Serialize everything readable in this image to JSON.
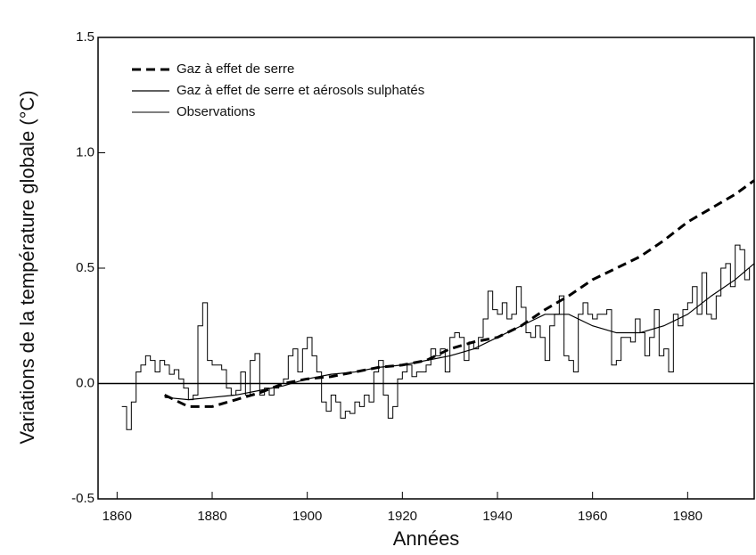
{
  "chart_data": {
    "type": "line",
    "xlabel": "Années",
    "ylabel": "Variations de la température globale (°C)",
    "xlim": [
      1856,
      1994
    ],
    "ylim": [
      -0.5,
      1.5
    ],
    "xticks": [
      1860,
      1880,
      1900,
      1920,
      1940,
      1960,
      1980
    ],
    "yticks": [
      -0.5,
      {
        "value": 0,
        "label": "0.0"
      },
      0.5,
      {
        "value": 1,
        "label": "1.0"
      },
      1.5
    ],
    "reference_line": 0,
    "legend": "upper left",
    "series": [
      {
        "name": "Gaz à effet de serre",
        "color": "#000000",
        "style": "dashed",
        "x": [
          1870,
          1875,
          1880,
          1885,
          1890,
          1895,
          1900,
          1905,
          1910,
          1915,
          1920,
          1925,
          1930,
          1935,
          1940,
          1945,
          1950,
          1955,
          1960,
          1965,
          1970,
          1975,
          1980,
          1985,
          1990,
          1994
        ],
        "values": [
          -0.05,
          -0.1,
          -0.1,
          -0.07,
          -0.04,
          0.0,
          0.02,
          0.03,
          0.05,
          0.07,
          0.08,
          0.1,
          0.15,
          0.18,
          0.2,
          0.25,
          0.32,
          0.38,
          0.45,
          0.5,
          0.55,
          0.62,
          0.7,
          0.76,
          0.82,
          0.88
        ]
      },
      {
        "name": "Gaz à effet de serre et aérosols sulphatés",
        "color": "#000000",
        "style": "solid",
        "x": [
          1870,
          1875,
          1880,
          1885,
          1890,
          1895,
          1900,
          1905,
          1910,
          1915,
          1920,
          1925,
          1930,
          1935,
          1940,
          1945,
          1950,
          1955,
          1960,
          1965,
          1970,
          1975,
          1980,
          1985,
          1990,
          1994
        ],
        "values": [
          -0.06,
          -0.07,
          -0.06,
          -0.05,
          -0.03,
          -0.01,
          0.02,
          0.04,
          0.05,
          0.07,
          0.08,
          0.1,
          0.12,
          0.15,
          0.2,
          0.25,
          0.3,
          0.3,
          0.25,
          0.22,
          0.22,
          0.25,
          0.3,
          0.38,
          0.45,
          0.52
        ]
      },
      {
        "name": "Observations",
        "color": "#000000",
        "style": "step",
        "x": [
          1861,
          1862,
          1863,
          1864,
          1865,
          1866,
          1867,
          1868,
          1869,
          1870,
          1871,
          1872,
          1873,
          1874,
          1875,
          1876,
          1877,
          1878,
          1879,
          1880,
          1881,
          1882,
          1883,
          1884,
          1885,
          1886,
          1887,
          1888,
          1889,
          1890,
          1891,
          1892,
          1893,
          1894,
          1895,
          1896,
          1897,
          1898,
          1899,
          1900,
          1901,
          1902,
          1903,
          1904,
          1905,
          1906,
          1907,
          1908,
          1909,
          1910,
          1911,
          1912,
          1913,
          1914,
          1915,
          1916,
          1917,
          1918,
          1919,
          1920,
          1921,
          1922,
          1923,
          1924,
          1925,
          1926,
          1927,
          1928,
          1929,
          1930,
          1931,
          1932,
          1933,
          1934,
          1935,
          1936,
          1937,
          1938,
          1939,
          1940,
          1941,
          1942,
          1943,
          1944,
          1945,
          1946,
          1947,
          1948,
          1949,
          1950,
          1951,
          1952,
          1953,
          1954,
          1955,
          1956,
          1957,
          1958,
          1959,
          1960,
          1961,
          1962,
          1963,
          1964,
          1965,
          1966,
          1967,
          1968,
          1969,
          1970,
          1971,
          1972,
          1973,
          1974,
          1975,
          1976,
          1977,
          1978,
          1979,
          1980,
          1981,
          1982,
          1983,
          1984,
          1985,
          1986,
          1987,
          1988,
          1989,
          1990,
          1991,
          1992,
          1993
        ],
        "values": [
          -0.1,
          -0.2,
          -0.08,
          0.05,
          0.08,
          0.12,
          0.1,
          0.05,
          0.1,
          0.08,
          0.04,
          0.06,
          0.02,
          -0.02,
          -0.07,
          -0.05,
          0.25,
          0.35,
          0.1,
          0.08,
          0.08,
          0.06,
          -0.02,
          -0.05,
          -0.03,
          0.05,
          -0.05,
          0.1,
          0.13,
          -0.05,
          -0.02,
          -0.05,
          -0.02,
          0.0,
          0.02,
          0.12,
          0.15,
          0.05,
          0.15,
          0.2,
          0.12,
          0.05,
          -0.08,
          -0.12,
          -0.05,
          -0.08,
          -0.15,
          -0.12,
          -0.13,
          -0.08,
          -0.1,
          -0.05,
          -0.08,
          0.05,
          0.1,
          -0.05,
          -0.15,
          -0.1,
          0.02,
          0.05,
          0.08,
          0.03,
          0.05,
          0.05,
          0.08,
          0.15,
          0.12,
          0.15,
          0.05,
          0.2,
          0.22,
          0.2,
          0.1,
          0.18,
          0.15,
          0.2,
          0.28,
          0.4,
          0.32,
          0.3,
          0.35,
          0.28,
          0.3,
          0.42,
          0.33,
          0.22,
          0.2,
          0.25,
          0.2,
          0.1,
          0.25,
          0.3,
          0.38,
          0.12,
          0.1,
          0.05,
          0.3,
          0.35,
          0.3,
          0.28,
          0.3,
          0.3,
          0.32,
          0.08,
          0.1,
          0.2,
          0.2,
          0.18,
          0.28,
          0.22,
          0.12,
          0.2,
          0.32,
          0.12,
          0.15,
          0.05,
          0.3,
          0.25,
          0.32,
          0.35,
          0.42,
          0.3,
          0.48,
          0.3,
          0.28,
          0.38,
          0.5,
          0.52,
          0.42,
          0.6,
          0.58,
          0.45,
          0.5
        ]
      }
    ]
  }
}
